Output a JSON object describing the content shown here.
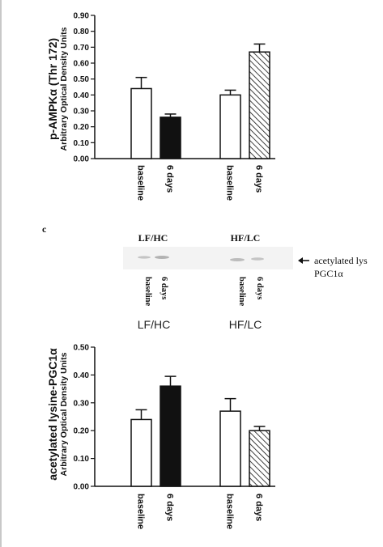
{
  "panel_c": {
    "letter": "c",
    "blot_groups": [
      "LF/HC",
      "HF/LC"
    ],
    "blot_annotation_line1": "acetylated lys",
    "blot_annotation_line2": "PGC1α",
    "lane_labels": [
      "baseline",
      "6 days",
      "baseline",
      "6 days"
    ],
    "diet_labels": [
      "LF/HC",
      "HF/LC"
    ]
  },
  "colors": {
    "axis": "#111111",
    "open": "#ffffff",
    "filled": "#111111",
    "hatch": "#111111"
  },
  "chart_data": [
    {
      "type": "bar",
      "ylabel": "p-AMPKα (Thr 172)",
      "ylabel_sub": "Arbitrary Optical Density Units",
      "ylim": [
        0,
        0.9
      ],
      "yticks": [
        "0.00",
        "0.10",
        "0.20",
        "0.30",
        "0.40",
        "0.50",
        "0.60",
        "0.70",
        "0.80",
        "0.90"
      ],
      "categories": [
        "baseline",
        "6 days",
        "baseline",
        "6 days"
      ],
      "values": [
        0.44,
        0.26,
        0.4,
        0.67
      ],
      "errors": [
        0.07,
        0.02,
        0.03,
        0.05
      ],
      "fills": [
        "open",
        "filled",
        "open",
        "hatched"
      ]
    },
    {
      "type": "bar",
      "ylabel": "acetylated lysine-PGC1α",
      "ylabel_sub": "Arbitrary Optical Density Units",
      "ylim": [
        0,
        0.5
      ],
      "yticks": [
        "0.00",
        "0.10",
        "0.20",
        "0.30",
        "0.40",
        "0.50"
      ],
      "categories": [
        "baseline",
        "6 days",
        "baseline",
        "6 days"
      ],
      "values": [
        0.24,
        0.36,
        0.27,
        0.2
      ],
      "errors": [
        0.035,
        0.035,
        0.045,
        0.015
      ],
      "fills": [
        "open",
        "filled",
        "open",
        "hatched"
      ]
    }
  ]
}
